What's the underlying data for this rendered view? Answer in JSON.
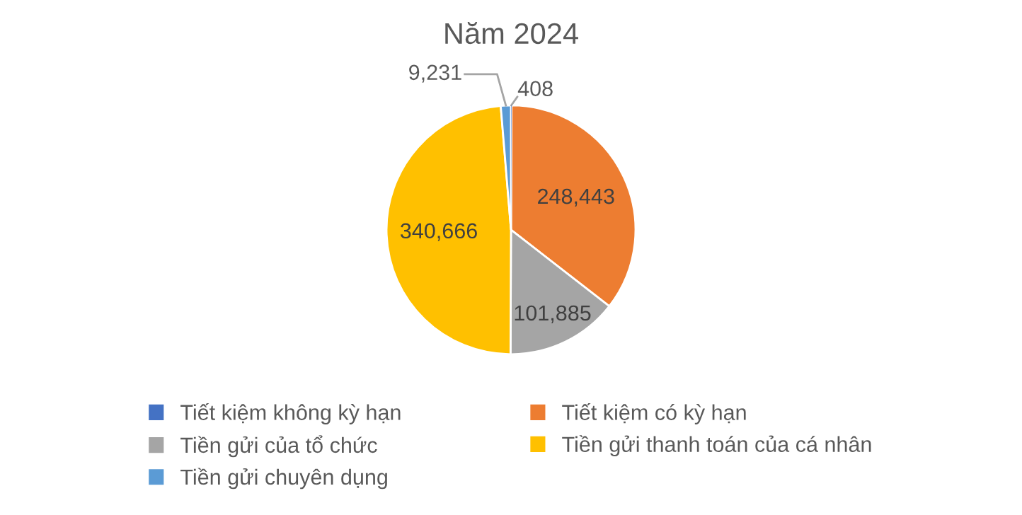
{
  "chart_data": {
    "type": "pie",
    "title": "Năm 2024",
    "categories": [
      "Tiết kiệm không kỳ hạn",
      "Tiết kiệm có kỳ hạn",
      "Tiền gửi của tổ chức",
      "Tiền gửi thanh toán của cá nhân",
      "Tiền gửi chuyên dụng"
    ],
    "values": [
      408,
      248443,
      101885,
      340666,
      9231
    ],
    "colors": [
      "#4472c4",
      "#ed7d31",
      "#a5a5a5",
      "#ffc000",
      "#5b9bd5"
    ],
    "value_labels": [
      "408",
      "248,443",
      "101,885",
      "340,666",
      "9,231"
    ],
    "legend": "bottom"
  }
}
